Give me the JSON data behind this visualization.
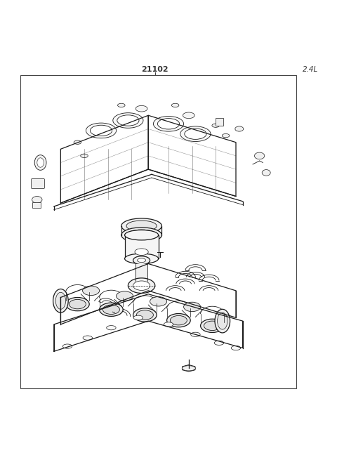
{
  "title": "21102",
  "subtitle": "2.4L",
  "bg_color": "#ffffff",
  "line_color": "#1a1a1a",
  "border_color": "#444444",
  "title_color": "#333333",
  "fig_width": 4.8,
  "fig_height": 6.55,
  "dpi": 100
}
